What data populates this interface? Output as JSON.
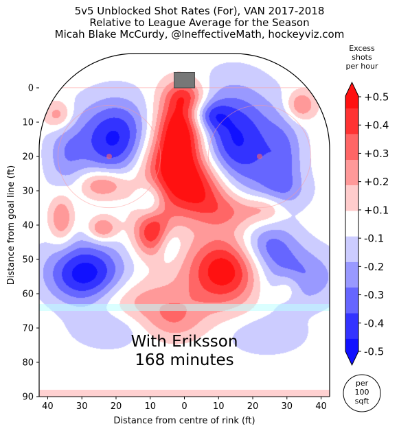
{
  "title_lines": [
    "5v5 Unblocked Shot Rates (For), VAN 2017-2018",
    "Relative to League Average for the Season",
    "Micah Blake McCurdy, @IneffectiveMath, hockeyviz.com"
  ],
  "annotation": {
    "line1": "With Eriksson",
    "line2": "168 minutes"
  },
  "colorbar": {
    "title_lines": [
      "Excess",
      "shots",
      "per hour"
    ],
    "labels": [
      "+0.5",
      "+0.4",
      "+0.3",
      "+0.2",
      "+0.1",
      "-0.1",
      "-0.2",
      "-0.3",
      "-0.4",
      "-0.5"
    ],
    "colors": [
      "#ff1111",
      "#ff3333",
      "#ff6666",
      "#ff9999",
      "#ffcccc",
      "#ffffff",
      "#ccccff",
      "#9999ff",
      "#6666ff",
      "#3333ff",
      "#1111ff"
    ]
  },
  "unit_badge": [
    "per",
    "100",
    "sqft"
  ],
  "chart_data": {
    "type": "heatmap",
    "xlabel": "Distance from centre of rink (ft)",
    "ylabel": "Distance from goal line (ft)",
    "xlim": [
      42.5,
      -42.5
    ],
    "ylim": [
      90,
      -10
    ],
    "x_ticks": [
      40,
      30,
      20,
      10,
      0,
      10,
      20,
      30,
      40
    ],
    "y_ticks": [
      0,
      10,
      20,
      30,
      40,
      50,
      60,
      70,
      80,
      90
    ],
    "blobs": [
      {
        "x": 0,
        "y": 2,
        "rx": 4,
        "ry": 3,
        "v": 0.22
      },
      {
        "x": 1,
        "y": 10,
        "rx": 5,
        "ry": 7,
        "v": 0.5
      },
      {
        "x": 3,
        "y": 22,
        "rx": 8,
        "ry": 8,
        "v": 0.55
      },
      {
        "x": -5,
        "y": 30,
        "rx": 7,
        "ry": 6,
        "v": 0.38
      },
      {
        "x": -14,
        "y": 36,
        "rx": 7,
        "ry": 4,
        "v": 0.22
      },
      {
        "x": -12,
        "y": 53,
        "rx": 8,
        "ry": 7,
        "v": 0.55
      },
      {
        "x": 9,
        "y": 42,
        "rx": 4,
        "ry": 5,
        "v": 0.48
      },
      {
        "x": 24,
        "y": 28,
        "rx": 5,
        "ry": 3,
        "v": 0.32
      },
      {
        "x": 24,
        "y": 41,
        "rx": 3,
        "ry": 2.5,
        "v": 0.3
      },
      {
        "x": 36,
        "y": 38,
        "rx": 2.5,
        "ry": 5,
        "v": 0.28
      },
      {
        "x": 37,
        "y": 8,
        "rx": 3,
        "ry": 3,
        "v": 0.25
      },
      {
        "x": 16,
        "y": 62,
        "rx": 14,
        "ry": 5,
        "v": 0.22
      },
      {
        "x": 3,
        "y": 68,
        "rx": 6,
        "ry": 4,
        "v": 0.18
      },
      {
        "x": -34,
        "y": 5,
        "rx": 3,
        "ry": 3,
        "v": 0.28
      },
      {
        "x": -24,
        "y": 35,
        "rx": 4,
        "ry": 3,
        "v": 0.18
      },
      {
        "x": -30,
        "y": 58,
        "rx": 3,
        "ry": 3,
        "v": 0.18
      },
      {
        "x": 20,
        "y": 15,
        "rx": 8,
        "ry": 8,
        "v": -0.5
      },
      {
        "x": -14,
        "y": 16,
        "rx": 9,
        "ry": 11,
        "v": -0.5
      },
      {
        "x": 29,
        "y": 55,
        "rx": 8,
        "ry": 7,
        "v": -0.55
      },
      {
        "x": 10,
        "y": 33,
        "rx": 3,
        "ry": 4,
        "v": -0.25
      },
      {
        "x": -7,
        "y": 8,
        "rx": 4,
        "ry": 3,
        "v": -0.25
      },
      {
        "x": 5,
        "y": 45,
        "rx": 3,
        "ry": 4,
        "v": -0.22
      },
      {
        "x": -24,
        "y": 46,
        "rx": 6,
        "ry": 5,
        "v": -0.3
      },
      {
        "x": -32,
        "y": 55,
        "rx": 9,
        "ry": 6,
        "v": -0.28
      },
      {
        "x": -29,
        "y": 20,
        "rx": 4,
        "ry": 8,
        "v": -0.2
      },
      {
        "x": 35,
        "y": 20,
        "rx": 4,
        "ry": 8,
        "v": -0.18
      },
      {
        "x": 22,
        "y": 70,
        "rx": 7,
        "ry": 4,
        "v": -0.16
      },
      {
        "x": -24,
        "y": 72,
        "rx": 8,
        "ry": 4,
        "v": -0.14
      },
      {
        "x": -28,
        "y": 30,
        "rx": 6,
        "ry": 4,
        "v": -0.15
      }
    ]
  }
}
